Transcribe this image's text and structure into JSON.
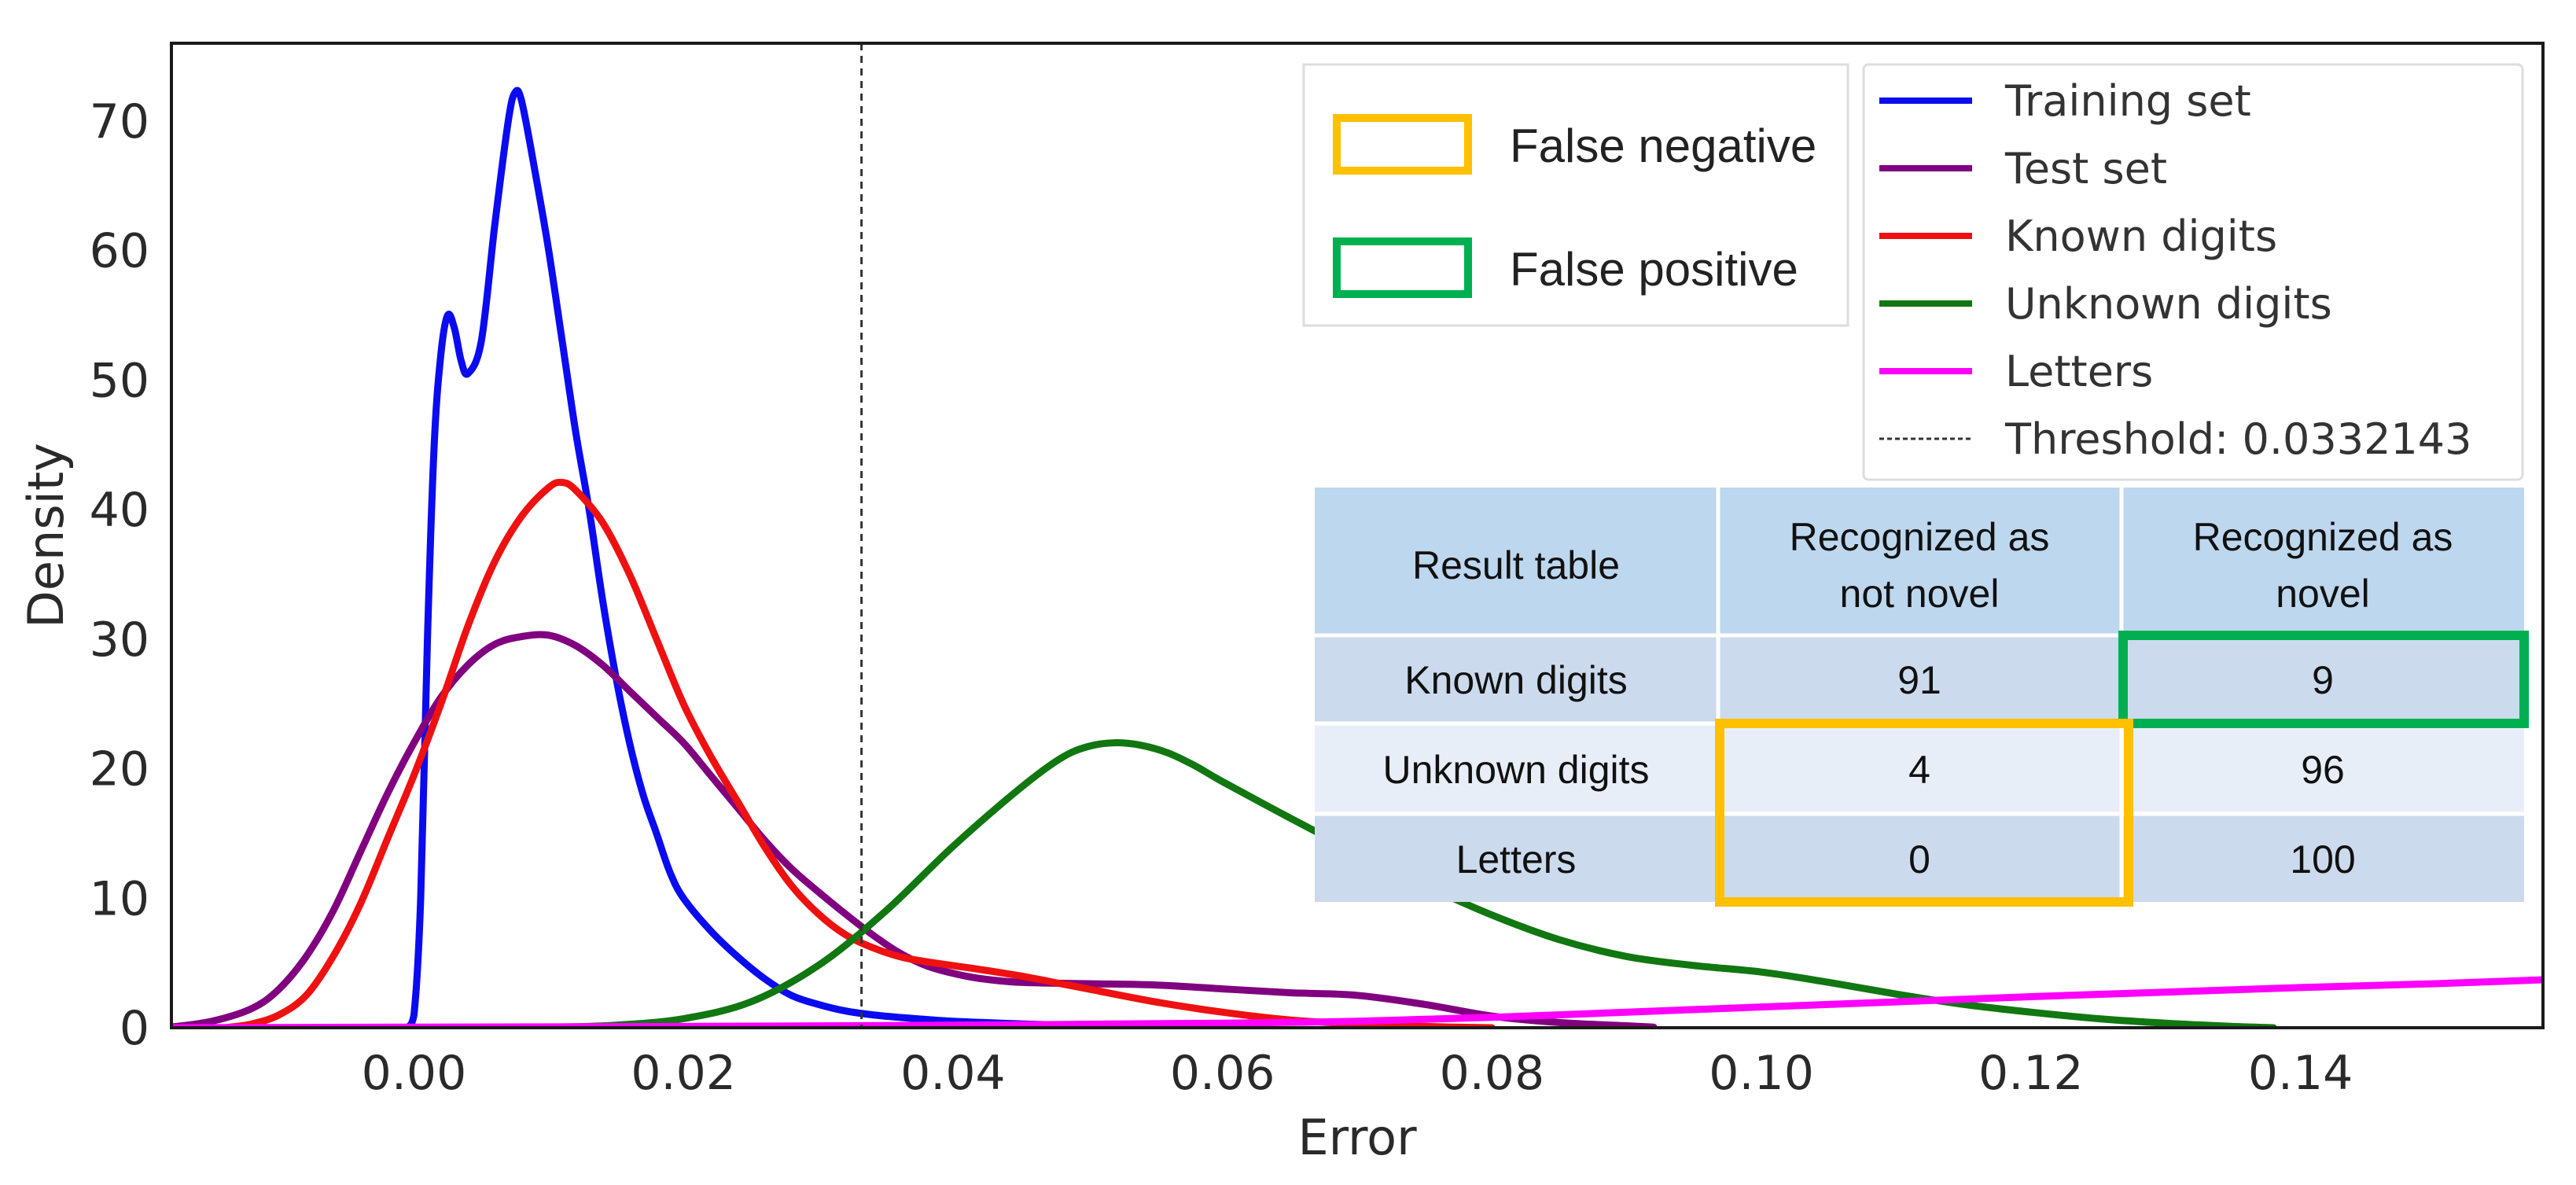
{
  "chart_data": {
    "type": "line",
    "title": "",
    "xlabel": "Error",
    "ylabel": "Density",
    "xlim": [
      -0.018,
      0.158
    ],
    "ylim": [
      0,
      76
    ],
    "xticks": [
      0.0,
      0.02,
      0.04,
      0.06,
      0.08,
      0.1,
      0.12,
      0.14
    ],
    "xtick_labels": [
      "0.00",
      "0.02",
      "0.04",
      "0.06",
      "0.08",
      "0.10",
      "0.12",
      "0.14"
    ],
    "yticks": [
      0,
      10,
      20,
      30,
      40,
      50,
      60,
      70
    ],
    "ytick_labels": [
      "0",
      "10",
      "20",
      "30",
      "40",
      "50",
      "60",
      "70"
    ],
    "grid": false,
    "series": [
      {
        "name": "Training set",
        "color": "#0b0bf0",
        "points": [
          [
            -0.0005,
            0
          ],
          [
            0.0,
            1
          ],
          [
            0.0005,
            10
          ],
          [
            0.001,
            30
          ],
          [
            0.0015,
            45
          ],
          [
            0.002,
            52
          ],
          [
            0.0025,
            55
          ],
          [
            0.003,
            54
          ],
          [
            0.0035,
            51.5
          ],
          [
            0.004,
            50.5
          ],
          [
            0.005,
            53
          ],
          [
            0.006,
            62
          ],
          [
            0.007,
            70
          ],
          [
            0.0075,
            72.2
          ],
          [
            0.008,
            71.5
          ],
          [
            0.009,
            66
          ],
          [
            0.01,
            60
          ],
          [
            0.011,
            53
          ],
          [
            0.012,
            46
          ],
          [
            0.013,
            40
          ],
          [
            0.014,
            33
          ],
          [
            0.015,
            27
          ],
          [
            0.016,
            22
          ],
          [
            0.017,
            18
          ],
          [
            0.018,
            15
          ],
          [
            0.019,
            12
          ],
          [
            0.02,
            10
          ],
          [
            0.022,
            7.5
          ],
          [
            0.024,
            5.5
          ],
          [
            0.026,
            3.8
          ],
          [
            0.028,
            2.5
          ],
          [
            0.03,
            1.8
          ],
          [
            0.032,
            1.3
          ],
          [
            0.034,
            1.0
          ],
          [
            0.036,
            0.8
          ],
          [
            0.04,
            0.5
          ],
          [
            0.045,
            0.3
          ],
          [
            0.05,
            0.15
          ],
          [
            0.055,
            0.05
          ],
          [
            0.06,
            0
          ]
        ]
      },
      {
        "name": "Test set",
        "color": "#800080",
        "points": [
          [
            -0.018,
            0.05
          ],
          [
            -0.015,
            0.5
          ],
          [
            -0.012,
            1.5
          ],
          [
            -0.01,
            3
          ],
          [
            -0.008,
            5.5
          ],
          [
            -0.006,
            9
          ],
          [
            -0.004,
            13.5
          ],
          [
            -0.002,
            18
          ],
          [
            0.0,
            22
          ],
          [
            0.002,
            25.5
          ],
          [
            0.004,
            28
          ],
          [
            0.006,
            29.6
          ],
          [
            0.008,
            30.2
          ],
          [
            0.01,
            30.3
          ],
          [
            0.012,
            29.5
          ],
          [
            0.014,
            28
          ],
          [
            0.016,
            26
          ],
          [
            0.018,
            24
          ],
          [
            0.02,
            22
          ],
          [
            0.022,
            19.5
          ],
          [
            0.024,
            17
          ],
          [
            0.026,
            14.5
          ],
          [
            0.028,
            12.3
          ],
          [
            0.03,
            10.5
          ],
          [
            0.032,
            8.8
          ],
          [
            0.034,
            7.2
          ],
          [
            0.036,
            5.8
          ],
          [
            0.038,
            4.8
          ],
          [
            0.04,
            4.2
          ],
          [
            0.042,
            3.8
          ],
          [
            0.045,
            3.5
          ],
          [
            0.05,
            3.4
          ],
          [
            0.055,
            3.3
          ],
          [
            0.06,
            3.0
          ],
          [
            0.065,
            2.7
          ],
          [
            0.07,
            2.5
          ],
          [
            0.075,
            1.8
          ],
          [
            0.08,
            0.9
          ],
          [
            0.085,
            0.4
          ],
          [
            0.09,
            0.15
          ],
          [
            0.092,
            0.05
          ]
        ]
      },
      {
        "name": "Known digits",
        "color": "#ee1111",
        "points": [
          [
            -0.014,
            0
          ],
          [
            -0.012,
            0.3
          ],
          [
            -0.01,
            1.0
          ],
          [
            -0.008,
            2.5
          ],
          [
            -0.006,
            5.5
          ],
          [
            -0.004,
            9.5
          ],
          [
            -0.002,
            14.5
          ],
          [
            0.0,
            19.5
          ],
          [
            0.002,
            25
          ],
          [
            0.004,
            31
          ],
          [
            0.006,
            36
          ],
          [
            0.008,
            39.5
          ],
          [
            0.01,
            41.7
          ],
          [
            0.011,
            42.1
          ],
          [
            0.012,
            41.5
          ],
          [
            0.014,
            39
          ],
          [
            0.016,
            35
          ],
          [
            0.018,
            30
          ],
          [
            0.02,
            25
          ],
          [
            0.022,
            21
          ],
          [
            0.024,
            17.5
          ],
          [
            0.026,
            14
          ],
          [
            0.028,
            11
          ],
          [
            0.03,
            8.8
          ],
          [
            0.032,
            7.2
          ],
          [
            0.034,
            6.2
          ],
          [
            0.036,
            5.5
          ],
          [
            0.038,
            5.1
          ],
          [
            0.04,
            4.8
          ],
          [
            0.042,
            4.5
          ],
          [
            0.045,
            4.0
          ],
          [
            0.048,
            3.4
          ],
          [
            0.05,
            3.0
          ],
          [
            0.055,
            2.0
          ],
          [
            0.06,
            1.2
          ],
          [
            0.065,
            0.6
          ],
          [
            0.07,
            0.3
          ],
          [
            0.075,
            0.1
          ],
          [
            0.08,
            0
          ]
        ]
      },
      {
        "name": "Unknown digits",
        "color": "#117711",
        "points": [
          [
            0.0,
            0
          ],
          [
            0.01,
            0.05
          ],
          [
            0.015,
            0.2
          ],
          [
            0.02,
            0.7
          ],
          [
            0.025,
            2.0
          ],
          [
            0.03,
            4.8
          ],
          [
            0.035,
            9
          ],
          [
            0.04,
            14
          ],
          [
            0.045,
            18.5
          ],
          [
            0.048,
            20.8
          ],
          [
            0.05,
            21.7
          ],
          [
            0.052,
            22.0
          ],
          [
            0.054,
            21.8
          ],
          [
            0.056,
            21.2
          ],
          [
            0.058,
            20.2
          ],
          [
            0.06,
            19.0
          ],
          [
            0.065,
            16.2
          ],
          [
            0.07,
            13.5
          ],
          [
            0.075,
            11.0
          ],
          [
            0.08,
            8.7
          ],
          [
            0.085,
            6.8
          ],
          [
            0.09,
            5.5
          ],
          [
            0.095,
            4.8
          ],
          [
            0.1,
            4.3
          ],
          [
            0.105,
            3.5
          ],
          [
            0.11,
            2.6
          ],
          [
            0.115,
            1.8
          ],
          [
            0.12,
            1.2
          ],
          [
            0.125,
            0.7
          ],
          [
            0.13,
            0.35
          ],
          [
            0.135,
            0.1
          ],
          [
            0.138,
            0
          ]
        ]
      },
      {
        "name": "Letters",
        "color": "#ff00ff",
        "points": [
          [
            -0.018,
            0
          ],
          [
            0.0,
            0.05
          ],
          [
            0.02,
            0.1
          ],
          [
            0.04,
            0.2
          ],
          [
            0.06,
            0.35
          ],
          [
            0.07,
            0.5
          ],
          [
            0.08,
            0.8
          ],
          [
            0.09,
            1.2
          ],
          [
            0.1,
            1.6
          ],
          [
            0.11,
            2.0
          ],
          [
            0.12,
            2.4
          ],
          [
            0.13,
            2.75
          ],
          [
            0.14,
            3.1
          ],
          [
            0.15,
            3.4
          ],
          [
            0.158,
            3.7
          ]
        ]
      }
    ],
    "threshold": {
      "label": "Threshold: 0.0332143",
      "value": 0.0332143,
      "style": "dashed",
      "color": "#333333"
    }
  },
  "annotation_legend": {
    "false_negative": {
      "label": "False negative",
      "color": "#ffc000"
    },
    "false_positive": {
      "label": "False positive",
      "color": "#00b050"
    }
  },
  "result_table": {
    "corner": "Result table",
    "col1": [
      "Recognized as",
      "not novel"
    ],
    "col2": [
      "Recognized as",
      "novel"
    ],
    "rows": [
      {
        "label": "Known digits",
        "not_novel": "91",
        "novel": "9"
      },
      {
        "label": "Unknown digits",
        "not_novel": "4",
        "novel": "96"
      },
      {
        "label": "Letters",
        "not_novel": "0",
        "novel": "100"
      }
    ],
    "header_color": "#bdd7ee",
    "row_colors": [
      "#ccdaed",
      "#e8eef8",
      "#ccdaed"
    ]
  }
}
